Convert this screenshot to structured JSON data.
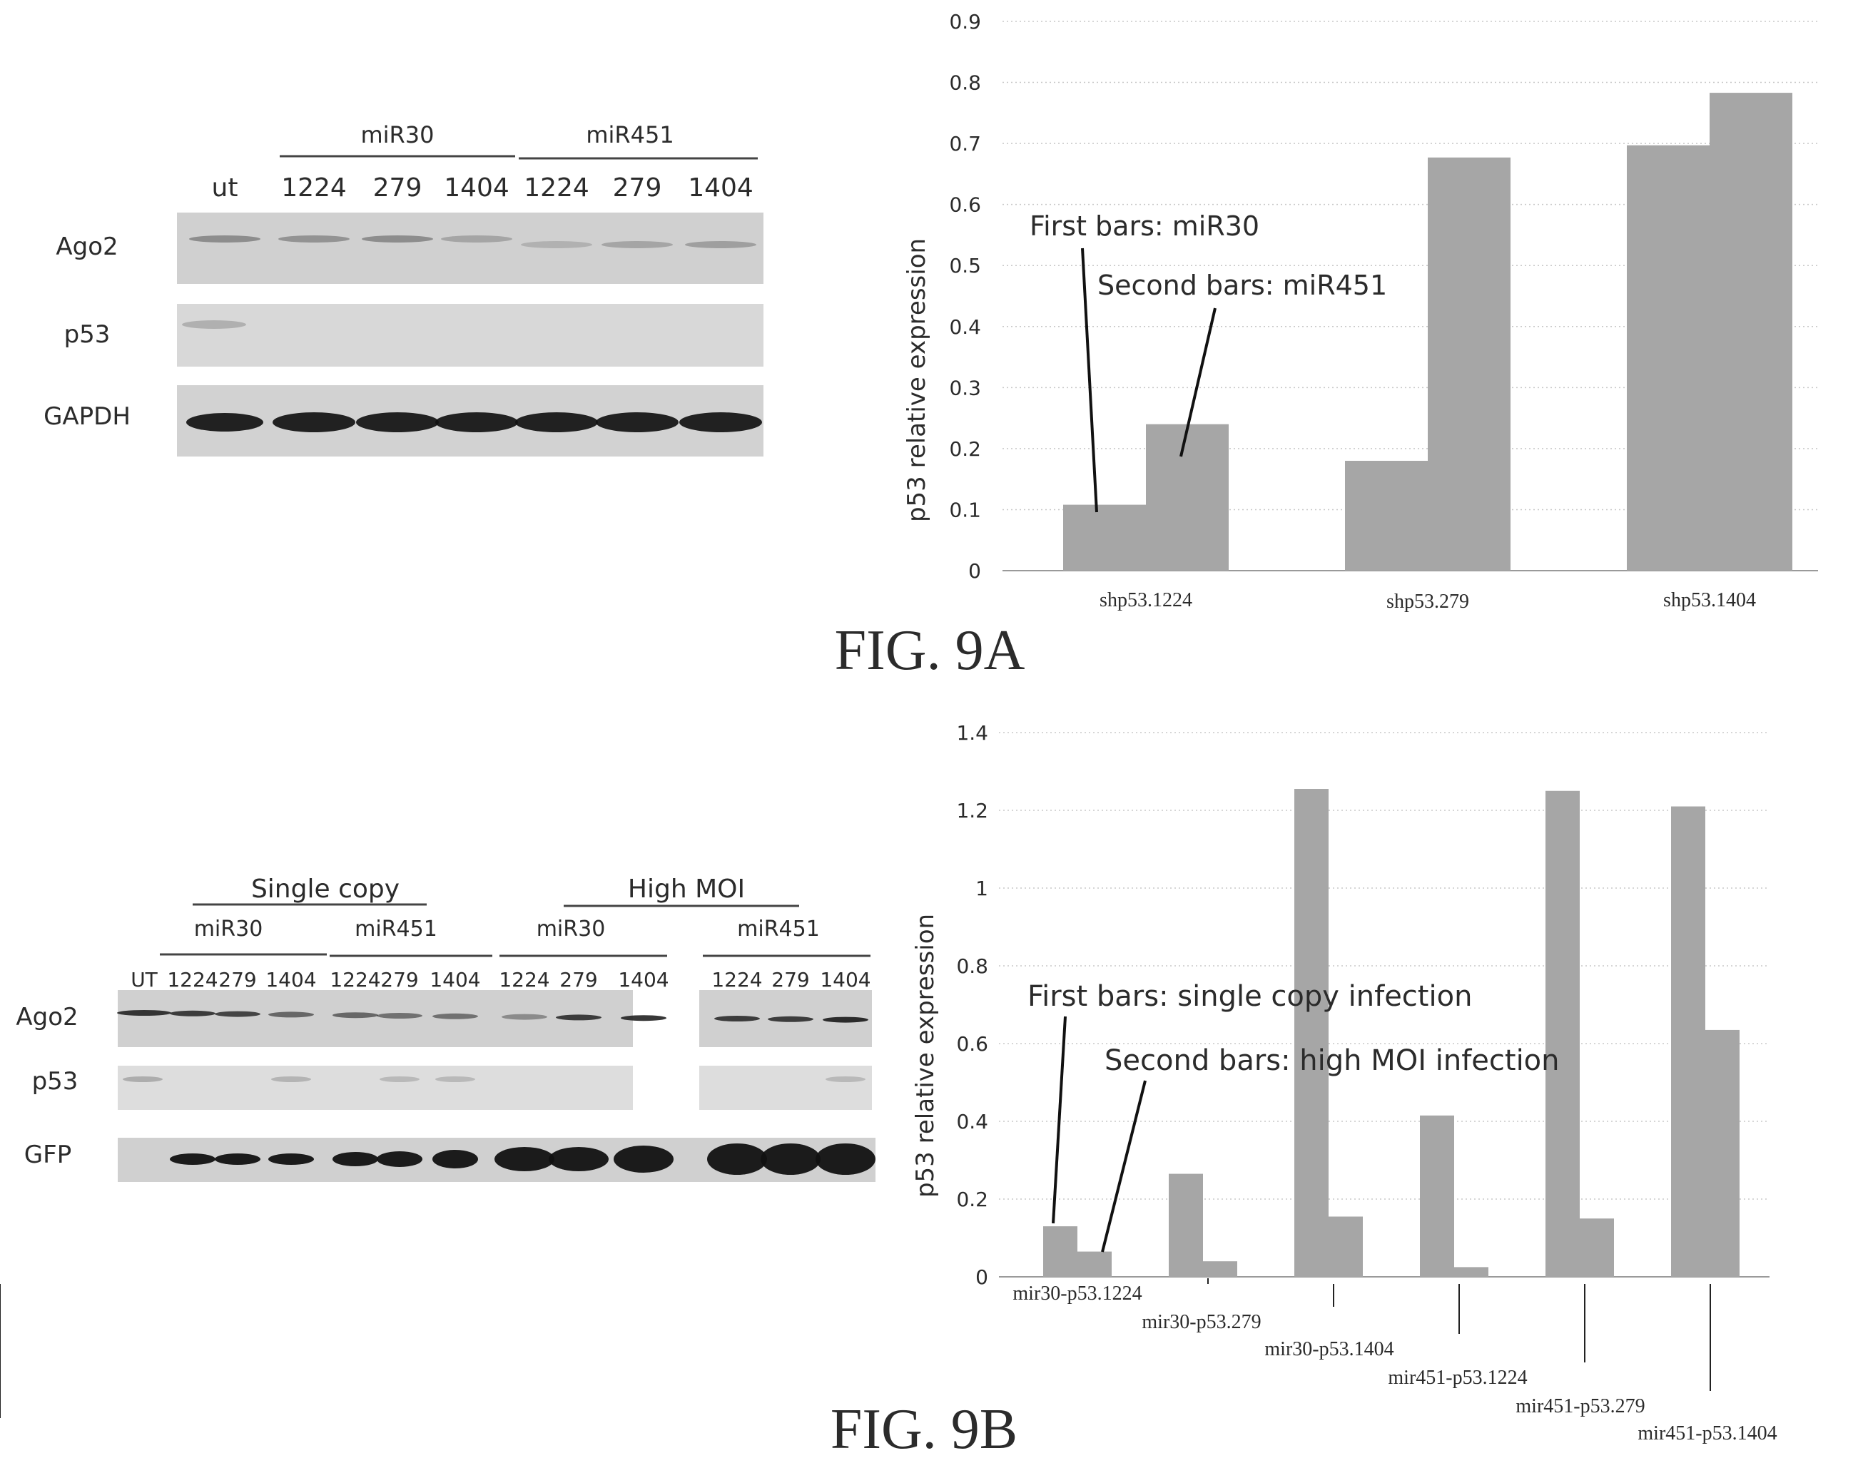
{
  "figures": {
    "fig9a": {
      "caption": "FIG. 9A",
      "blot": {
        "group_labels": [
          "miR30",
          "miR451"
        ],
        "lane_labels": [
          "ut",
          "1224",
          "279",
          "1404",
          "1224",
          "279",
          "1404"
        ],
        "row_labels": [
          "Ago2",
          "p53",
          "GAPDH"
        ]
      }
    },
    "fig9b": {
      "caption": "FIG. 9B",
      "blot": {
        "top_group_labels": [
          "Single copy",
          "High MOI"
        ],
        "sub_group_labels": [
          "miR30",
          "miR451",
          "miR30",
          "miR451"
        ],
        "lane_labels": [
          "UT",
          "1224",
          "279",
          "1404",
          "1224",
          "279",
          "1404",
          "1224",
          "279",
          "1404",
          "1224",
          "279",
          "1404"
        ],
        "row_labels": [
          "Ago2",
          "p53",
          "GFP"
        ]
      }
    }
  },
  "chart_data": [
    {
      "type": "bar",
      "ylabel": "p53 relative expression",
      "ylim": [
        0,
        0.9
      ],
      "yticks": [
        "0",
        "0.1",
        "0.2",
        "0.3",
        "0.4",
        "0.5",
        "0.6",
        "0.7",
        "0.8",
        "0.9"
      ],
      "grid": true,
      "categories": [
        "shp53.1224",
        "shp53.279",
        "shp53.1404"
      ],
      "series": [
        {
          "values": [
            0.108,
            0.18,
            0.697
          ]
        },
        {
          "values": [
            0.24,
            0.677,
            0.783
          ]
        }
      ],
      "annotations": [
        "First bars: miR30",
        "Second bars:  miR451"
      ],
      "bar_color": "#a6a6a6"
    },
    {
      "type": "bar",
      "ylabel": "p53 relative expression",
      "ylim": [
        0,
        1.4
      ],
      "yticks": [
        "0",
        "0.2",
        "0.4",
        "0.6",
        "0.8",
        "1",
        "1.2",
        "1.4"
      ],
      "grid": true,
      "categories": [
        "mir30-p53.1224",
        "mir30-p53.279",
        "mir30-p53.1404",
        "mir451-p53.1224",
        "mir451-p53.279",
        "mir451-p53.1404"
      ],
      "series": [
        {
          "values": [
            0.13,
            0.265,
            1.255,
            0.415,
            1.25,
            1.21
          ]
        },
        {
          "values": [
            0.065,
            0.04,
            0.155,
            0.025,
            0.15,
            0.635
          ]
        }
      ],
      "annotations": [
        "First bars: single copy infection",
        "Second bars:  high MOI infection"
      ],
      "bar_color": "#a6a6a6"
    }
  ]
}
